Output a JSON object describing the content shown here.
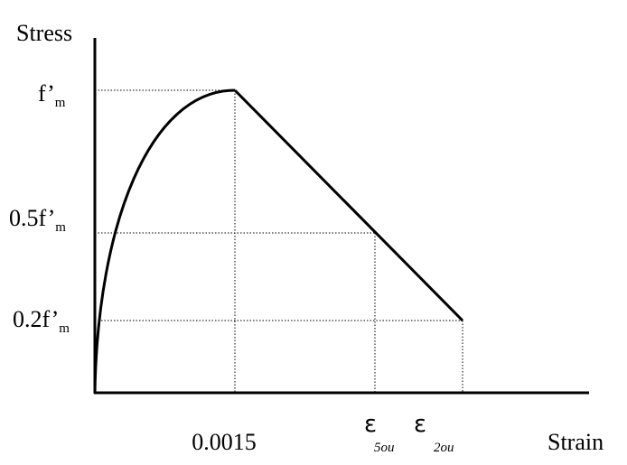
{
  "axes": {
    "y_label": "Stress",
    "x_label": "Strain"
  },
  "y_labels": [
    {
      "text": "f’",
      "sub": "m"
    },
    {
      "text": "0.5f’",
      "sub": "m"
    },
    {
      "text": "0.2f’",
      "sub": "m"
    }
  ],
  "x_labels": [
    {
      "text": "0.0015"
    },
    {
      "text": "ε",
      "sub": "5ou"
    },
    {
      "text": "ε",
      "sub": "2ou"
    }
  ]
}
